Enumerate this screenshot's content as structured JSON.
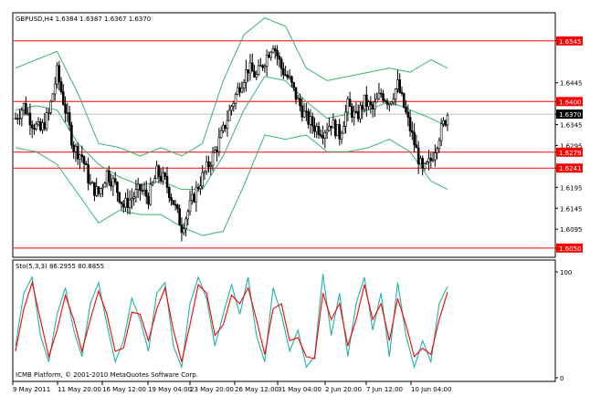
{
  "chart_data": {
    "type": "candlestick",
    "symbol_header": "GBPUSD,H4  1.6384  1.6387  1.6367  1.6370",
    "price_axis": {
      "ylim": [
        1.603,
        1.661
      ],
      "ticks": [
        "1.6545",
        "1.6445",
        "1.6400",
        "1.6370",
        "1.6345",
        "1.6295",
        "1.6279",
        "1.6241",
        "1.6195",
        "1.6145",
        "1.6095",
        "1.6050"
      ],
      "tick_values": [
        1.6545,
        1.6445,
        1.64,
        1.637,
        1.6345,
        1.6295,
        1.6279,
        1.6241,
        1.6195,
        1.6145,
        1.6095,
        1.605
      ]
    },
    "horizontal_levels": [
      {
        "value": 1.6545,
        "label": "1.6545",
        "color": "#ff0000"
      },
      {
        "value": 1.64,
        "label": "1.6400",
        "color": "#ff0000"
      },
      {
        "value": 1.6279,
        "label": "1.6279",
        "color": "#ff0000"
      },
      {
        "value": 1.6241,
        "label": "1.6241",
        "color": "#ff0000"
      },
      {
        "value": 1.605,
        "label": "1.6050",
        "color": "#ff0000"
      }
    ],
    "current_price": {
      "value": 1.637,
      "label": "1.6370"
    },
    "close_path": [
      [
        0,
        1.636
      ],
      [
        4,
        1.639
      ],
      [
        8,
        1.635
      ],
      [
        12,
        1.633
      ],
      [
        16,
        1.637
      ],
      [
        20,
        1.647
      ],
      [
        24,
        1.638
      ],
      [
        28,
        1.629
      ],
      [
        32,
        1.627
      ],
      [
        36,
        1.62
      ],
      [
        40,
        1.618
      ],
      [
        44,
        1.623
      ],
      [
        48,
        1.62
      ],
      [
        52,
        1.615
      ],
      [
        56,
        1.617
      ],
      [
        60,
        1.619
      ],
      [
        64,
        1.617
      ],
      [
        68,
        1.623
      ],
      [
        72,
        1.621
      ],
      [
        76,
        1.616
      ],
      [
        80,
        1.61
      ],
      [
        84,
        1.615
      ],
      [
        88,
        1.62
      ],
      [
        92,
        1.624
      ],
      [
        96,
        1.628
      ],
      [
        100,
        1.633
      ],
      [
        104,
        1.639
      ],
      [
        108,
        1.644
      ],
      [
        112,
        1.648
      ],
      [
        116,
        1.646
      ],
      [
        120,
        1.65
      ],
      [
        124,
        1.654
      ],
      [
        128,
        1.648
      ],
      [
        132,
        1.645
      ],
      [
        136,
        1.64
      ],
      [
        140,
        1.636
      ],
      [
        144,
        1.634
      ],
      [
        148,
        1.633
      ],
      [
        152,
        1.635
      ],
      [
        156,
        1.632
      ],
      [
        160,
        1.639
      ],
      [
        164,
        1.636
      ],
      [
        168,
        1.64
      ],
      [
        172,
        1.638
      ],
      [
        176,
        1.642
      ],
      [
        180,
        1.64
      ],
      [
        184,
        1.644
      ],
      [
        188,
        1.637
      ],
      [
        192,
        1.63
      ],
      [
        196,
        1.623
      ],
      [
        200,
        1.626
      ],
      [
        204,
        1.632
      ],
      [
        208,
        1.637
      ]
    ],
    "bollinger": {
      "upper": [
        [
          0,
          1.648
        ],
        [
          10,
          1.65
        ],
        [
          20,
          1.652
        ],
        [
          30,
          1.642
        ],
        [
          40,
          1.63
        ],
        [
          50,
          1.629
        ],
        [
          60,
          1.627
        ],
        [
          70,
          1.629
        ],
        [
          80,
          1.627
        ],
        [
          90,
          1.63
        ],
        [
          100,
          1.645
        ],
        [
          110,
          1.656
        ],
        [
          120,
          1.66
        ],
        [
          130,
          1.658
        ],
        [
          140,
          1.648
        ],
        [
          150,
          1.645
        ],
        [
          160,
          1.646
        ],
        [
          170,
          1.647
        ],
        [
          180,
          1.648
        ],
        [
          190,
          1.647
        ],
        [
          200,
          1.65
        ],
        [
          208,
          1.648
        ]
      ],
      "middle": [
        [
          0,
          1.638
        ],
        [
          10,
          1.639
        ],
        [
          20,
          1.638
        ],
        [
          30,
          1.63
        ],
        [
          40,
          1.625
        ],
        [
          50,
          1.622
        ],
        [
          60,
          1.62
        ],
        [
          70,
          1.621
        ],
        [
          80,
          1.619
        ],
        [
          90,
          1.619
        ],
        [
          100,
          1.627
        ],
        [
          110,
          1.638
        ],
        [
          120,
          1.646
        ],
        [
          130,
          1.645
        ],
        [
          140,
          1.64
        ],
        [
          150,
          1.636
        ],
        [
          160,
          1.637
        ],
        [
          170,
          1.638
        ],
        [
          180,
          1.64
        ],
        [
          190,
          1.638
        ],
        [
          200,
          1.636
        ],
        [
          208,
          1.634
        ]
      ],
      "lower": [
        [
          0,
          1.629
        ],
        [
          10,
          1.628
        ],
        [
          20,
          1.625
        ],
        [
          30,
          1.618
        ],
        [
          40,
          1.611
        ],
        [
          50,
          1.614
        ],
        [
          60,
          1.613
        ],
        [
          70,
          1.613
        ],
        [
          80,
          1.61
        ],
        [
          90,
          1.608
        ],
        [
          100,
          1.609
        ],
        [
          110,
          1.62
        ],
        [
          120,
          1.632
        ],
        [
          130,
          1.631
        ],
        [
          140,
          1.632
        ],
        [
          150,
          1.628
        ],
        [
          160,
          1.628
        ],
        [
          170,
          1.629
        ],
        [
          180,
          1.631
        ],
        [
          190,
          1.628
        ],
        [
          200,
          1.621
        ],
        [
          208,
          1.619
        ]
      ]
    },
    "stochastic": {
      "header": "Sto(5,3,3) 86.2955 80.8855",
      "ylim": [
        0,
        100
      ],
      "ticks": [
        "100",
        "0"
      ],
      "tick_values": [
        100,
        0
      ],
      "main": [
        [
          0,
          30
        ],
        [
          4,
          80
        ],
        [
          8,
          95
        ],
        [
          12,
          40
        ],
        [
          16,
          15
        ],
        [
          20,
          60
        ],
        [
          24,
          85
        ],
        [
          28,
          45
        ],
        [
          32,
          20
        ],
        [
          36,
          70
        ],
        [
          40,
          90
        ],
        [
          44,
          50
        ],
        [
          48,
          15
        ],
        [
          52,
          35
        ],
        [
          56,
          75
        ],
        [
          60,
          55
        ],
        [
          64,
          25
        ],
        [
          68,
          80
        ],
        [
          72,
          90
        ],
        [
          76,
          30
        ],
        [
          80,
          10
        ],
        [
          84,
          70
        ],
        [
          88,
          95
        ],
        [
          92,
          75
        ],
        [
          96,
          30
        ],
        [
          100,
          60
        ],
        [
          104,
          88
        ],
        [
          108,
          60
        ],
        [
          112,
          95
        ],
        [
          116,
          40
        ],
        [
          120,
          15
        ],
        [
          124,
          85
        ],
        [
          128,
          60
        ],
        [
          132,
          25
        ],
        [
          136,
          45
        ],
        [
          140,
          10
        ],
        [
          144,
          20
        ],
        [
          148,
          98
        ],
        [
          152,
          40
        ],
        [
          156,
          80
        ],
        [
          160,
          20
        ],
        [
          164,
          70
        ],
        [
          168,
          95
        ],
        [
          172,
          45
        ],
        [
          176,
          80
        ],
        [
          180,
          20
        ],
        [
          184,
          90
        ],
        [
          188,
          40
        ],
        [
          192,
          10
        ],
        [
          196,
          35
        ],
        [
          200,
          15
        ],
        [
          204,
          70
        ],
        [
          208,
          86.2955
        ]
      ],
      "signal": [
        [
          0,
          25
        ],
        [
          4,
          65
        ],
        [
          8,
          90
        ],
        [
          12,
          55
        ],
        [
          16,
          20
        ],
        [
          20,
          45
        ],
        [
          24,
          78
        ],
        [
          28,
          55
        ],
        [
          32,
          25
        ],
        [
          36,
          55
        ],
        [
          40,
          82
        ],
        [
          44,
          60
        ],
        [
          48,
          25
        ],
        [
          52,
          28
        ],
        [
          56,
          62
        ],
        [
          60,
          60
        ],
        [
          64,
          35
        ],
        [
          68,
          65
        ],
        [
          72,
          85
        ],
        [
          76,
          45
        ],
        [
          80,
          15
        ],
        [
          84,
          50
        ],
        [
          88,
          88
        ],
        [
          92,
          80
        ],
        [
          96,
          40
        ],
        [
          100,
          50
        ],
        [
          104,
          78
        ],
        [
          108,
          70
        ],
        [
          112,
          85
        ],
        [
          116,
          55
        ],
        [
          120,
          22
        ],
        [
          124,
          65
        ],
        [
          128,
          70
        ],
        [
          132,
          35
        ],
        [
          136,
          38
        ],
        [
          140,
          20
        ],
        [
          144,
          18
        ],
        [
          148,
          80
        ],
        [
          152,
          55
        ],
        [
          156,
          70
        ],
        [
          160,
          30
        ],
        [
          164,
          55
        ],
        [
          168,
          88
        ],
        [
          172,
          55
        ],
        [
          176,
          70
        ],
        [
          180,
          35
        ],
        [
          184,
          75
        ],
        [
          188,
          50
        ],
        [
          192,
          20
        ],
        [
          196,
          28
        ],
        [
          200,
          22
        ],
        [
          204,
          55
        ],
        [
          208,
          80.8855
        ]
      ]
    },
    "time_axis": {
      "ticks": [
        "9 May 2011",
        "11 May 20:00",
        "16 May 12:00",
        "19 May 04:00",
        "23 May 20:00",
        "26 May 12:00",
        "31 May 04:00",
        "2 Jun 20:00",
        "7 Jun 12:00",
        "10 Jun 04:00"
      ],
      "tick_index": [
        0,
        22,
        44,
        66,
        88,
        110,
        132,
        154,
        176,
        198
      ]
    },
    "footer": "ICMB Platform, © 2001-2010 MetaQuotes Software Corp.",
    "colors": {
      "background": "#ffffff",
      "candles": "#000000",
      "levels": "#ff0000",
      "bollinger": "#3cb371",
      "stoch_main": "#20b2aa",
      "stoch_signal": "#ff0000",
      "label_fill": "#ff0000",
      "label_text": "#ffffff"
    }
  }
}
